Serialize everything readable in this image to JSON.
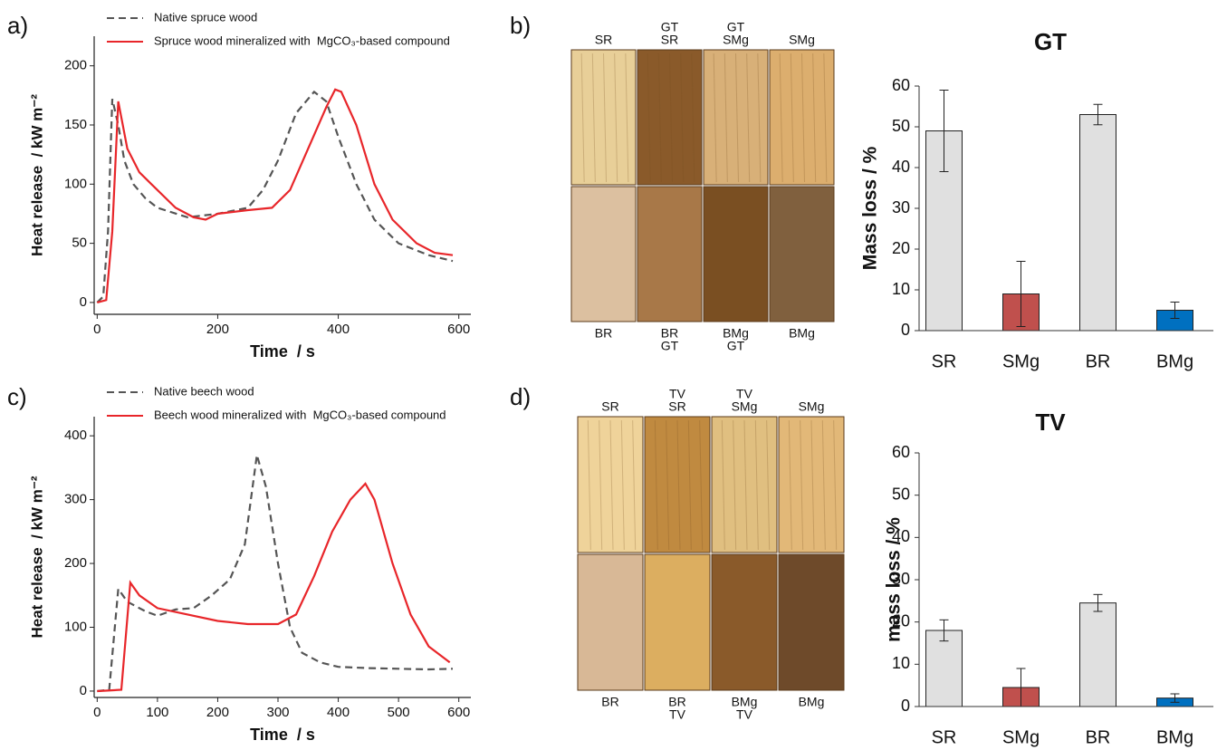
{
  "chart_data": [
    {
      "type": "line",
      "panel_label": "a)",
      "x_label": "Time  / s",
      "y_label": "Heat release  / kW m⁻²",
      "xlim": [
        -5,
        620
      ],
      "ylim": [
        -10,
        225
      ],
      "xticks": [
        0,
        200,
        400,
        600
      ],
      "yticks": [
        0,
        50,
        100,
        150,
        200
      ],
      "series": [
        {
          "name": "Native spruce wood",
          "color": "#555555",
          "dash": true,
          "x": [
            0,
            10,
            18,
            25,
            35,
            45,
            60,
            80,
            100,
            150,
            200,
            250,
            275,
            300,
            330,
            360,
            380,
            400,
            430,
            460,
            500,
            550,
            590
          ],
          "values": [
            0,
            5,
            60,
            172,
            150,
            120,
            100,
            88,
            80,
            72,
            75,
            80,
            95,
            120,
            160,
            178,
            170,
            140,
            100,
            70,
            50,
            40,
            35
          ]
        },
        {
          "name": "Spruce wood mineralized with  MgCO₃-based compound",
          "color": "#e8262a",
          "dash": false,
          "x": [
            0,
            15,
            25,
            35,
            50,
            70,
            90,
            130,
            160,
            180,
            200,
            250,
            290,
            320,
            350,
            380,
            395,
            405,
            430,
            460,
            490,
            530,
            560,
            590
          ],
          "values": [
            0,
            2,
            60,
            170,
            130,
            110,
            100,
            80,
            72,
            70,
            75,
            78,
            80,
            95,
            130,
            165,
            180,
            178,
            150,
            100,
            70,
            50,
            42,
            40
          ]
        }
      ]
    },
    {
      "type": "line",
      "panel_label": "c)",
      "x_label": "Time  / s",
      "y_label": "Heat release  / kW m⁻²",
      "xlim": [
        -5,
        620
      ],
      "ylim": [
        -10,
        430
      ],
      "xticks": [
        0,
        100,
        200,
        300,
        400,
        500,
        600
      ],
      "yticks": [
        0,
        100,
        200,
        300,
        400
      ],
      "series": [
        {
          "name": "Native beech wood",
          "color": "#555555",
          "dash": true,
          "x": [
            0,
            20,
            35,
            50,
            80,
            100,
            130,
            160,
            190,
            220,
            245,
            265,
            280,
            300,
            320,
            340,
            370,
            400,
            450,
            500,
            550,
            590
          ],
          "values": [
            0,
            2,
            160,
            140,
            125,
            118,
            128,
            130,
            150,
            175,
            230,
            370,
            320,
            200,
            100,
            60,
            45,
            38,
            36,
            35,
            34,
            35
          ]
        },
        {
          "name": "Beech wood mineralized with  MgCO₃-based compound",
          "color": "#e8262a",
          "dash": false,
          "x": [
            0,
            40,
            55,
            70,
            100,
            150,
            200,
            250,
            300,
            330,
            360,
            390,
            420,
            445,
            460,
            490,
            520,
            550,
            585
          ],
          "values": [
            0,
            2,
            170,
            150,
            130,
            120,
            110,
            105,
            105,
            120,
            180,
            250,
            300,
            325,
            300,
            200,
            120,
            70,
            45
          ]
        }
      ]
    },
    {
      "type": "bar",
      "title": "GT",
      "y_label": "Mass loss / %",
      "categories": [
        "SR",
        "SMg",
        "BR",
        "BMg"
      ],
      "values": [
        49,
        9,
        53,
        5
      ],
      "errors": [
        10,
        8,
        2.5,
        2
      ],
      "colors": [
        "#e0e0e0",
        "#c0504d",
        "#e0e0e0",
        "#0070c0"
      ],
      "ylim": [
        0,
        60
      ],
      "yticks": [
        0,
        10,
        20,
        30,
        40,
        50,
        60
      ]
    },
    {
      "type": "bar",
      "title": "TV",
      "y_label": "mass loss / %",
      "categories": [
        "SR",
        "SMg",
        "BR",
        "BMg"
      ],
      "values": [
        18,
        4.5,
        24.5,
        2
      ],
      "errors": [
        2.5,
        4.5,
        2,
        1
      ],
      "colors": [
        "#e0e0e0",
        "#c0504d",
        "#e0e0e0",
        "#0070c0"
      ],
      "ylim": [
        0,
        60
      ],
      "yticks": [
        0,
        10,
        20,
        30,
        40,
        50,
        60
      ]
    }
  ],
  "photos": [
    {
      "label": "b)",
      "top_labels": [
        [
          "SR"
        ],
        [
          "GT",
          "SR"
        ],
        [
          "GT",
          "SMg"
        ],
        [
          "SMg"
        ]
      ],
      "bottom_labels": [
        [
          "BR"
        ],
        [
          "BR",
          "GT"
        ],
        [
          "BMg",
          "GT"
        ],
        [
          "BMg"
        ]
      ]
    },
    {
      "label": "d)",
      "top_labels": [
        [
          "SR"
        ],
        [
          "TV",
          "SR"
        ],
        [
          "TV",
          "SMg"
        ],
        [
          "SMg"
        ]
      ],
      "bottom_labels": [
        [
          "BR"
        ],
        [
          "BR",
          "TV"
        ],
        [
          "BMg",
          "TV"
        ],
        [
          "BMg"
        ]
      ]
    }
  ]
}
